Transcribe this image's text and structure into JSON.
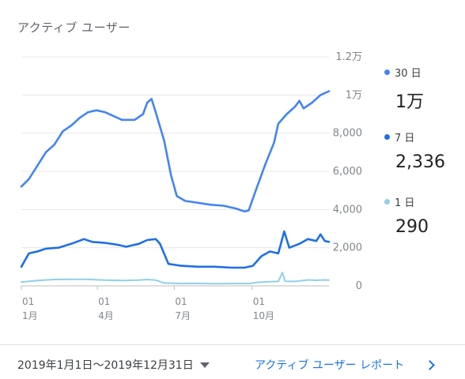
{
  "card": {
    "title": "アクティブ ユーザー"
  },
  "chart_data": {
    "type": "line",
    "yticks": [
      "1.2万",
      "1万",
      "8,000",
      "6,000",
      "4,000",
      "2,000",
      "0"
    ],
    "ytick_values": [
      12000,
      10000,
      8000,
      6000,
      4000,
      2000,
      0
    ],
    "ylim": [
      0,
      12000
    ],
    "xlim": [
      1,
      365
    ],
    "xticks": [
      {
        "day": 1,
        "label": "01",
        "month": "1月"
      },
      {
        "day": 91,
        "label": "01",
        "month": "4月"
      },
      {
        "day": 182,
        "label": "01",
        "month": "7月"
      },
      {
        "day": 274,
        "label": "01",
        "month": "10月"
      }
    ],
    "grid": true,
    "series": [
      {
        "name": "30 日",
        "color": "#4285f4",
        "points": [
          [
            1,
            5200
          ],
          [
            10,
            5600
          ],
          [
            20,
            6300
          ],
          [
            30,
            7000
          ],
          [
            40,
            7400
          ],
          [
            50,
            8100
          ],
          [
            60,
            8400
          ],
          [
            70,
            8800
          ],
          [
            80,
            9100
          ],
          [
            90,
            9200
          ],
          [
            100,
            9100
          ],
          [
            110,
            8900
          ],
          [
            120,
            8700
          ],
          [
            135,
            8700
          ],
          [
            145,
            9000
          ],
          [
            150,
            9600
          ],
          [
            155,
            9800
          ],
          [
            160,
            9100
          ],
          [
            170,
            7600
          ],
          [
            178,
            5800
          ],
          [
            185,
            4700
          ],
          [
            195,
            4450
          ],
          [
            210,
            4350
          ],
          [
            225,
            4250
          ],
          [
            240,
            4200
          ],
          [
            255,
            4050
          ],
          [
            265,
            3900
          ],
          [
            270,
            3950
          ],
          [
            280,
            5200
          ],
          [
            290,
            6400
          ],
          [
            300,
            7500
          ],
          [
            305,
            8500
          ],
          [
            315,
            9000
          ],
          [
            325,
            9400
          ],
          [
            330,
            9700
          ],
          [
            335,
            9300
          ],
          [
            345,
            9600
          ],
          [
            355,
            10000
          ],
          [
            365,
            10200
          ]
        ]
      },
      {
        "name": "7 日",
        "color": "#1e6fe8",
        "points": [
          [
            1,
            1000
          ],
          [
            10,
            1700
          ],
          [
            20,
            1800
          ],
          [
            30,
            1950
          ],
          [
            45,
            2000
          ],
          [
            60,
            2200
          ],
          [
            75,
            2450
          ],
          [
            85,
            2300
          ],
          [
            100,
            2250
          ],
          [
            115,
            2150
          ],
          [
            125,
            2050
          ],
          [
            140,
            2200
          ],
          [
            150,
            2400
          ],
          [
            160,
            2450
          ],
          [
            165,
            2200
          ],
          [
            175,
            1150
          ],
          [
            190,
            1050
          ],
          [
            210,
            1000
          ],
          [
            230,
            1000
          ],
          [
            250,
            950
          ],
          [
            265,
            950
          ],
          [
            275,
            1050
          ],
          [
            285,
            1550
          ],
          [
            295,
            1800
          ],
          [
            305,
            1700
          ],
          [
            312,
            2850
          ],
          [
            318,
            2000
          ],
          [
            330,
            2200
          ],
          [
            340,
            2450
          ],
          [
            350,
            2350
          ],
          [
            355,
            2700
          ],
          [
            360,
            2350
          ],
          [
            365,
            2300
          ]
        ]
      },
      {
        "name": "1 日",
        "color": "#8fd0ea",
        "points": [
          [
            1,
            200
          ],
          [
            20,
            280
          ],
          [
            40,
            330
          ],
          [
            60,
            340
          ],
          [
            80,
            340
          ],
          [
            100,
            300
          ],
          [
            120,
            280
          ],
          [
            140,
            300
          ],
          [
            150,
            330
          ],
          [
            160,
            300
          ],
          [
            170,
            150
          ],
          [
            190,
            120
          ],
          [
            210,
            130
          ],
          [
            230,
            110
          ],
          [
            250,
            120
          ],
          [
            270,
            120
          ],
          [
            280,
            180
          ],
          [
            295,
            220
          ],
          [
            305,
            230
          ],
          [
            310,
            700
          ],
          [
            313,
            240
          ],
          [
            325,
            230
          ],
          [
            340,
            310
          ],
          [
            350,
            290
          ],
          [
            360,
            310
          ],
          [
            365,
            300
          ]
        ]
      }
    ]
  },
  "legend": [
    {
      "label": "30 日",
      "value": "1万",
      "color": "#4285f4"
    },
    {
      "label": "7 日",
      "value": "2,336",
      "color": "#1e6fe8"
    },
    {
      "label": "1 日",
      "value": "290",
      "color": "#8fd0ea"
    }
  ],
  "footer": {
    "date_range": "2019年1月1日～2019年12月31日",
    "report_link": "アクティブ ユーザー レポート"
  }
}
